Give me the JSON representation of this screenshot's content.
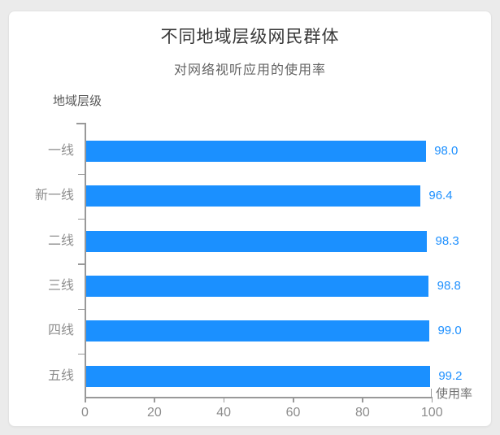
{
  "chart_data": {
    "type": "bar",
    "orientation": "horizontal",
    "title": "不同地域层级网民群体",
    "subtitle": "对网络视听应用的使用率",
    "y_axis_title": "地域层级",
    "x_axis_title": "使用率",
    "categories": [
      "一线",
      "新一线",
      "二线",
      "三线",
      "四线",
      "五线"
    ],
    "values": [
      98.0,
      96.4,
      98.3,
      98.8,
      99.0,
      99.2
    ],
    "value_labels": [
      "98.0",
      "96.4",
      "98.3",
      "98.8",
      "99.0",
      "99.2"
    ],
    "x_ticks": [
      "0",
      "20",
      "40",
      "60",
      "80",
      "100"
    ],
    "x_tick_values": [
      0,
      20,
      40,
      60,
      80,
      100
    ],
    "xlim": [
      0,
      100
    ],
    "grid": false,
    "legend": "none",
    "bar_color": "#1b90ff",
    "value_label_color": "#1e90ff"
  },
  "colors": {
    "page_background": "#ebebeb",
    "card_background": "#ffffff",
    "axis": "#999999",
    "title_text": "#383838",
    "subtitle_text": "#646464",
    "category_text": "#8f8f8f",
    "tick_text": "#8c8c8c"
  }
}
